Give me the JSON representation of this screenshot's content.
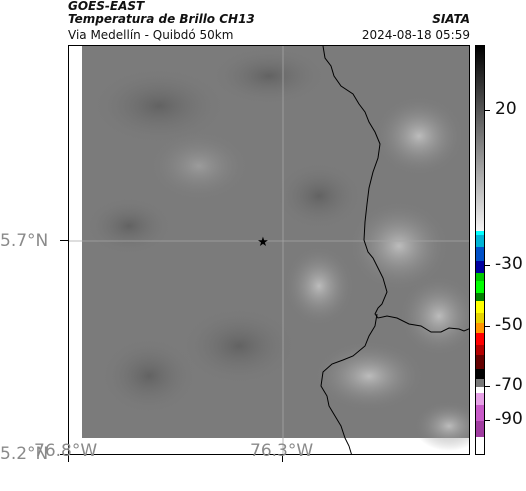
{
  "header": {
    "satellite": "GOES-EAST",
    "product": "Temperatura de Brillo CH13",
    "region": "Via Medellín - Quibdó 50km",
    "organization": "SIATA",
    "datetime": "2024-08-18 05:59"
  },
  "map": {
    "lat_labels": [
      "5.7°N",
      "5.2°N"
    ],
    "lon_labels": [
      "76.8°W",
      "76.3°W"
    ],
    "marker": "station-star",
    "background_color": "#7c7c7c",
    "border_color": "#000000"
  },
  "colorbar": {
    "tick_labels": [
      "20",
      "-30",
      "-50",
      "-70",
      "-90"
    ]
  }
}
